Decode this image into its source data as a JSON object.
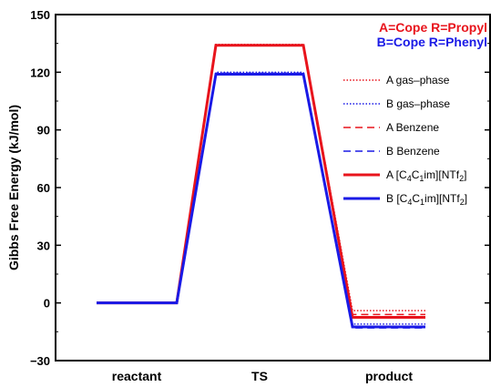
{
  "chart_data": {
    "type": "line",
    "ylabel": "Gibbs Free Energy (kJ/mol)",
    "xlabel": "",
    "ylim": [
      -30,
      150
    ],
    "yticks": [
      -30,
      0,
      30,
      60,
      90,
      120,
      150
    ],
    "categories": [
      "reactant",
      "TS",
      "product"
    ],
    "grid": false,
    "legend_placement": "top-right",
    "title_lines": [
      {
        "text": "A=Cope R=Propyl",
        "color": "#e8141c"
      },
      {
        "text": "B=Cope R=Phenyl",
        "color": "#1a1ae6"
      }
    ],
    "series": [
      {
        "legend": "A gas–phase",
        "color": "#e8141c",
        "style": "dotted",
        "values": [
          0,
          134.5,
          -4
        ]
      },
      {
        "legend": "B gas–phase",
        "color": "#1a1ae6",
        "style": "dotted",
        "values": [
          0,
          120,
          -11
        ]
      },
      {
        "legend": "A Benzene",
        "color": "#e8141c",
        "style": "dashed",
        "values": [
          0,
          134,
          -6
        ]
      },
      {
        "legend": "B Benzene",
        "color": "#1a1ae6",
        "style": "dashed",
        "values": [
          0,
          119.5,
          -13
        ]
      },
      {
        "legend": "A [C4C1im][NTf2]",
        "legend_parts": [
          "A [C",
          "4",
          "C",
          "1",
          "im][NTf",
          "2",
          "]"
        ],
        "color": "#e8141c",
        "style": "solid",
        "values": [
          0,
          134,
          -7.5
        ]
      },
      {
        "legend": "B [C4C1im][NTf2]",
        "legend_parts": [
          "B [C",
          "4",
          "C",
          "1",
          "im][NTf",
          "2",
          "]"
        ],
        "color": "#1a1ae6",
        "style": "solid",
        "values": [
          0,
          119,
          -12.5
        ]
      }
    ]
  }
}
